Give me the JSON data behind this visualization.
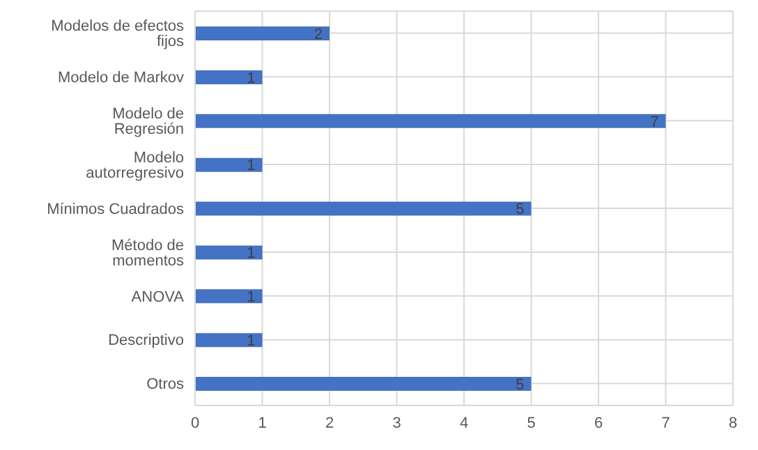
{
  "chart_data": {
    "type": "bar",
    "orientation": "horizontal",
    "categories": [
      "Modelos de efectos fijos",
      "Modelo de Markov",
      "Modelo de Regresión",
      "Modelo autorregresivo",
      "Mínimos Cuadrados",
      "Método de momentos",
      "ANOVA",
      "Descriptivo",
      "Otros"
    ],
    "values": [
      2,
      1,
      7,
      1,
      5,
      1,
      1,
      1,
      5
    ],
    "color": "#4472c4",
    "xlim": [
      0,
      8
    ],
    "xticks": [
      0,
      1,
      2,
      3,
      4,
      5,
      6,
      7,
      8
    ],
    "grid": true,
    "data_labels": true
  }
}
